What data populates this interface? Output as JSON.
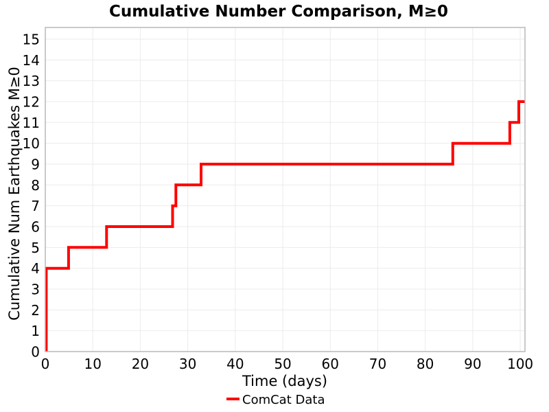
{
  "chart_data": {
    "type": "line",
    "subtype": "step",
    "title": "Cumulative Number Comparison, M≥0",
    "xlabel": "Time (days)",
    "ylabel": "Cumulative Num Earthquakes M≥0",
    "xlim": [
      0,
      101
    ],
    "ylim": [
      0,
      15.56
    ],
    "xticks": [
      0,
      10,
      20,
      30,
      40,
      50,
      60,
      70,
      80,
      90,
      100
    ],
    "yticks": [
      0,
      1,
      2,
      3,
      4,
      5,
      6,
      7,
      8,
      9,
      10,
      11,
      12,
      13,
      14,
      15
    ],
    "grid": true,
    "legend_position": "bottom-center",
    "series": [
      {
        "name": "ComCat Data",
        "color": "#ff0000",
        "line_width": 4,
        "step_points": [
          [
            0.2,
            0
          ],
          [
            0.2,
            4
          ],
          [
            4.9,
            4
          ],
          [
            4.9,
            5
          ],
          [
            12.9,
            5
          ],
          [
            12.9,
            6
          ],
          [
            26.8,
            6
          ],
          [
            26.8,
            7
          ],
          [
            27.5,
            7
          ],
          [
            27.5,
            8
          ],
          [
            32.8,
            8
          ],
          [
            32.8,
            9
          ],
          [
            85.8,
            9
          ],
          [
            85.8,
            10
          ],
          [
            97.8,
            10
          ],
          [
            97.8,
            11
          ],
          [
            99.7,
            11
          ],
          [
            99.7,
            12
          ],
          [
            101,
            12
          ]
        ],
        "event_days": [
          0.2,
          0.2,
          0.2,
          0.2,
          4.9,
          12.9,
          26.8,
          27.5,
          32.8,
          85.8,
          97.8,
          99.7
        ],
        "final_cumulative_count": 12
      }
    ],
    "colors": {
      "line": "#ff0000",
      "grid": "#ebebeb",
      "spine": "#b3b3b3",
      "text": "#000000",
      "background": "#ffffff"
    }
  }
}
